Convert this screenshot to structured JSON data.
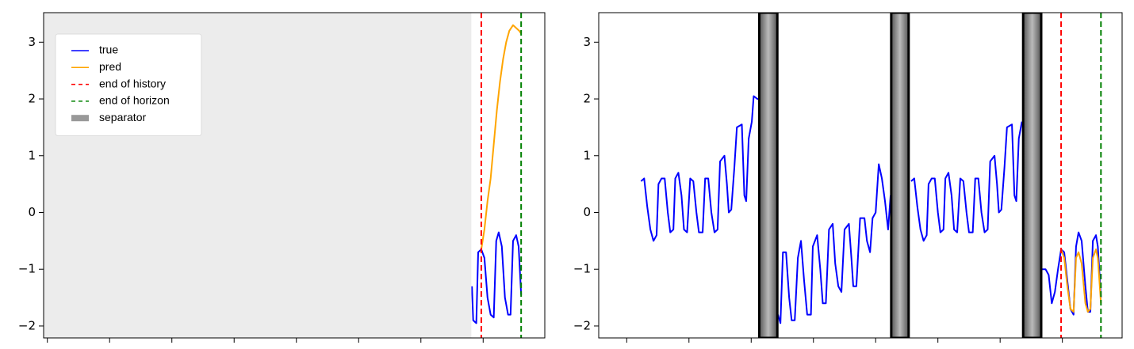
{
  "chart_data": [
    {
      "type": "line",
      "xlim": [
        -6,
        799
      ],
      "ylim": [
        -2.21,
        3.52
      ],
      "xticks": [
        0,
        100,
        200,
        300,
        400,
        500,
        600,
        700
      ],
      "yticks": [
        {
          "value": -2,
          "label": "−2"
        },
        {
          "value": -1,
          "label": "−1"
        },
        0,
        1,
        2,
        3
      ],
      "legend": "upper left",
      "series": [
        {
          "name": "true",
          "color": "#0000ff",
          "x": [
            682,
            684,
            689,
            692,
            697,
            702,
            707,
            712,
            717,
            721,
            725,
            730,
            735,
            740,
            744,
            748,
            753,
            757,
            761
          ],
          "values": [
            -1.3,
            -1.9,
            -1.95,
            -0.7,
            -0.65,
            -0.8,
            -1.5,
            -1.8,
            -1.85,
            -0.5,
            -0.35,
            -0.6,
            -1.5,
            -1.8,
            -1.8,
            -0.5,
            -0.4,
            -0.6,
            -1.45
          ]
        },
        {
          "name": "pred",
          "color": "#ffa500",
          "x": [
            697,
            702,
            707,
            712,
            717,
            722,
            727,
            732,
            737,
            742,
            748,
            753,
            758,
            761
          ],
          "values": [
            -0.65,
            -0.3,
            0.2,
            0.6,
            1.2,
            1.8,
            2.3,
            2.7,
            3.0,
            3.2,
            3.3,
            3.25,
            3.2,
            3.15
          ]
        }
      ],
      "vlines": [
        {
          "name": "end of history",
          "x": 697,
          "color": "#ff0000"
        },
        {
          "name": "end of horizon",
          "x": 761,
          "color": "#008000"
        }
      ],
      "separators": {
        "name": "separator",
        "color": "#999999",
        "fill": "#ececec",
        "ranges": [
          [
            -6,
            681
          ]
        ]
      }
    },
    {
      "type": "line",
      "xlim": [
        -45,
        796
      ],
      "ylim": [
        -2.21,
        3.52
      ],
      "xticks": [
        0,
        100,
        200,
        300,
        400,
        500,
        600,
        700
      ],
      "yticks": [
        {
          "value": -2,
          "label": "−2"
        },
        {
          "value": -1,
          "label": "−1"
        },
        0,
        1,
        2,
        3
      ],
      "series": [
        {
          "color": "#0000ff",
          "x": [
            23,
            28,
            33,
            38,
            43,
            48,
            51,
            56,
            61,
            66,
            70,
            75,
            78,
            83,
            88,
            92,
            97,
            102,
            107,
            112,
            116,
            122,
            126,
            131,
            136,
            141,
            146,
            150,
            157,
            161,
            164,
            168,
            173,
            177,
            185,
            189,
            192,
            196,
            201,
            204,
            210,
            213,
            null,
            243,
            247,
            251,
            256,
            261,
            265,
            270,
            275,
            280,
            285,
            290,
            296,
            299,
            306,
            311,
            315,
            320,
            325,
            331,
            335,
            340,
            345,
            350,
            357,
            361,
            364,
            369,
            375,
            382,
            386,
            391,
            395,
            400,
            405,
            410,
            415,
            420,
            424,
            null,
            457,
            462,
            467,
            472,
            477,
            482,
            485,
            490,
            495,
            500,
            504,
            509,
            512,
            517,
            522,
            526,
            531,
            536,
            541,
            546,
            550,
            556,
            560,
            565,
            570,
            575,
            580,
            584,
            591,
            595,
            598,
            602,
            607,
            611,
            619,
            623,
            626,
            630,
            635,
            null,
            667,
            673,
            678,
            683,
            688,
            693,
            698,
            703,
            708,
            713,
            718,
            722,
            726,
            731,
            737,
            741,
            745,
            749,
            754,
            757,
            762
          ],
          "values": [
            0.55,
            0.6,
            0.1,
            -0.3,
            -0.5,
            -0.4,
            0.5,
            0.6,
            0.6,
            0.0,
            -0.35,
            -0.3,
            0.6,
            0.7,
            0.3,
            -0.3,
            -0.35,
            0.6,
            0.55,
            0.0,
            -0.35,
            -0.35,
            0.6,
            0.6,
            0.0,
            -0.35,
            -0.3,
            0.9,
            1.0,
            0.5,
            0.0,
            0.05,
            0.8,
            1.5,
            1.55,
            0.3,
            0.2,
            1.3,
            1.6,
            2.05,
            2.0,
            2.0,
            null,
            -1.8,
            -1.95,
            -0.7,
            -0.7,
            -1.5,
            -1.9,
            -1.9,
            -0.8,
            -0.5,
            -1.2,
            -1.8,
            -1.8,
            -0.6,
            -0.4,
            -1.0,
            -1.6,
            -1.6,
            -0.3,
            -0.2,
            -0.9,
            -1.3,
            -1.4,
            -0.3,
            -0.2,
            -0.8,
            -1.3,
            -1.3,
            -0.1,
            -0.1,
            -0.5,
            -0.7,
            -0.1,
            0.0,
            0.85,
            0.6,
            0.2,
            -0.3,
            0.3,
            null,
            0.55,
            0.6,
            0.1,
            -0.3,
            -0.5,
            -0.4,
            0.5,
            0.6,
            0.6,
            0.0,
            -0.35,
            -0.3,
            0.6,
            0.7,
            0.3,
            -0.3,
            -0.35,
            0.6,
            0.55,
            0.0,
            -0.35,
            -0.35,
            0.6,
            0.6,
            0.0,
            -0.35,
            -0.3,
            0.9,
            1.0,
            0.5,
            0.0,
            0.05,
            0.8,
            1.5,
            1.55,
            0.3,
            0.2,
            1.3,
            1.6,
            null,
            -1.0,
            -1.0,
            -1.1,
            -1.6,
            -1.4,
            -1.0,
            -0.65,
            -0.7,
            -1.2,
            -1.7,
            -1.8,
            -0.6,
            -0.35,
            -0.5,
            -1.3,
            -1.75,
            -1.75,
            -0.5,
            -0.4,
            -0.6,
            -1.5
          ]
        },
        {
          "color": "#ffa500",
          "x": [
            698,
            703,
            708,
            713,
            718,
            722,
            726,
            731,
            737,
            741,
            745,
            749,
            754,
            757,
            762
          ],
          "values": [
            -0.65,
            -0.8,
            -1.3,
            -1.7,
            -1.75,
            -0.8,
            -0.7,
            -0.9,
            -1.6,
            -1.75,
            -1.7,
            -0.8,
            -0.65,
            -0.8,
            -1.6
          ]
        }
      ],
      "vlines": [
        {
          "x": 698,
          "color": "#ff0000"
        },
        {
          "x": 762,
          "color": "#008000"
        }
      ],
      "separators": {
        "color": "#808080",
        "edge": "#000000",
        "ranges": [
          [
            213,
            242
          ],
          [
            425,
            453
          ],
          [
            637,
            666
          ]
        ]
      }
    }
  ]
}
